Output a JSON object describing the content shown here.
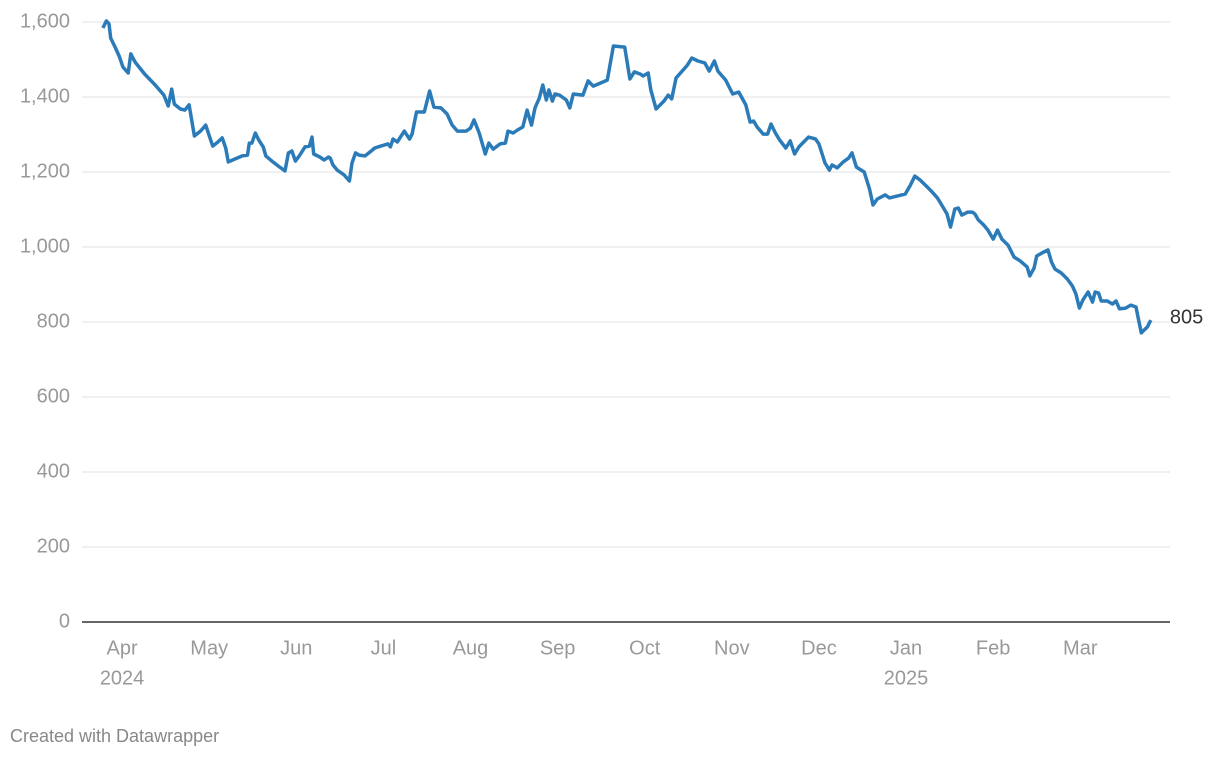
{
  "chart_data": {
    "type": "line",
    "color": "#2b7bb9",
    "grid": true,
    "xlim": [
      -0.46,
      12.03
    ],
    "ylim": [
      0,
      1600
    ],
    "yticks": [
      0,
      200,
      400,
      600,
      800,
      {
        "value": 1000,
        "label": "1,000"
      },
      {
        "value": 1200,
        "label": "1,200"
      },
      {
        "value": 1400,
        "label": "1,400"
      },
      {
        "value": 1600,
        "label": "1,600"
      }
    ],
    "xticks": [
      {
        "value": 0,
        "label": "Apr"
      },
      {
        "value": 1,
        "label": "May"
      },
      {
        "value": 2,
        "label": "Jun"
      },
      {
        "value": 3,
        "label": "Jul"
      },
      {
        "value": 4,
        "label": "Aug"
      },
      {
        "value": 5,
        "label": "Sep"
      },
      {
        "value": 6,
        "label": "Oct"
      },
      {
        "value": 7,
        "label": "Nov"
      },
      {
        "value": 8,
        "label": "Dec"
      },
      {
        "value": 9,
        "label": "Jan"
      },
      {
        "value": 10,
        "label": "Feb"
      },
      {
        "value": 11,
        "label": "Mar"
      }
    ],
    "year_labels": [
      {
        "value": 0,
        "label": "2024"
      },
      {
        "value": 9,
        "label": "2025"
      }
    ],
    "x": [
      -0.22,
      -0.18,
      -0.15,
      -0.13,
      -0.08,
      -0.03,
      0.01,
      0.07,
      0.1,
      0.15,
      0.26,
      0.38,
      0.48,
      0.53,
      0.57,
      0.6,
      0.67,
      0.72,
      0.77,
      0.83,
      0.9,
      0.96,
      1.04,
      1.1,
      1.15,
      1.19,
      1.22,
      1.3,
      1.38,
      1.44,
      1.46,
      1.49,
      1.53,
      1.57,
      1.62,
      1.65,
      1.72,
      1.81,
      1.87,
      1.91,
      1.95,
      1.99,
      2.04,
      2.1,
      2.15,
      2.18,
      2.2,
      2.27,
      2.32,
      2.37,
      2.39,
      2.42,
      2.47,
      2.55,
      2.61,
      2.64,
      2.68,
      2.72,
      2.79,
      2.86,
      2.9,
      2.97,
      3.05,
      3.08,
      3.11,
      3.16,
      3.24,
      3.3,
      3.33,
      3.38,
      3.47,
      3.53,
      3.58,
      3.66,
      3.73,
      3.79,
      3.85,
      3.95,
      4.0,
      4.04,
      4.1,
      4.17,
      4.21,
      4.26,
      4.34,
      4.4,
      4.43,
      4.49,
      4.54,
      4.6,
      4.65,
      4.7,
      4.74,
      4.79,
      4.83,
      4.87,
      4.9,
      4.94,
      4.97,
      5.02,
      5.1,
      5.14,
      5.18,
      5.29,
      5.35,
      5.41,
      5.49,
      5.57,
      5.64,
      5.77,
      5.83,
      5.88,
      5.95,
      5.98,
      6.04,
      6.07,
      6.13,
      6.22,
      6.27,
      6.31,
      6.36,
      6.43,
      6.49,
      6.54,
      6.61,
      6.69,
      6.74,
      6.8,
      6.84,
      6.93,
      7.01,
      7.08,
      7.16,
      7.21,
      7.25,
      7.29,
      7.36,
      7.41,
      7.45,
      7.5,
      7.55,
      7.62,
      7.67,
      7.72,
      7.77,
      7.88,
      7.96,
      8.0,
      8.07,
      8.12,
      8.15,
      8.21,
      8.28,
      8.34,
      8.38,
      8.43,
      8.52,
      8.58,
      8.62,
      8.67,
      8.76,
      8.81,
      8.99,
      9.05,
      9.1,
      9.16,
      9.23,
      9.29,
      9.36,
      9.43,
      9.47,
      9.51,
      9.56,
      9.6,
      9.64,
      9.71,
      9.76,
      9.79,
      9.83,
      9.89,
      9.94,
      10.0,
      10.05,
      10.1,
      10.17,
      10.24,
      10.31,
      10.39,
      10.42,
      10.47,
      10.5,
      10.56,
      10.63,
      10.67,
      10.71,
      10.78,
      10.85,
      10.91,
      10.95,
      10.99,
      11.03,
      11.09,
      11.14,
      11.17,
      11.21,
      11.24,
      11.31,
      11.37,
      11.41,
      11.45,
      11.52,
      11.58,
      11.64,
      11.66,
      11.7,
      11.77,
      11.81
    ],
    "values": [
      1584,
      1603,
      1595,
      1557,
      1533,
      1507,
      1480,
      1464,
      1515,
      1493,
      1461,
      1432,
      1405,
      1376,
      1421,
      1381,
      1368,
      1365,
      1379,
      1296,
      1309,
      1325,
      1269,
      1280,
      1291,
      1264,
      1227,
      1235,
      1243,
      1245,
      1277,
      1277,
      1304,
      1285,
      1267,
      1243,
      1229,
      1213,
      1203,
      1251,
      1256,
      1229,
      1245,
      1267,
      1269,
      1293,
      1248,
      1240,
      1232,
      1240,
      1237,
      1219,
      1205,
      1192,
      1176,
      1224,
      1251,
      1245,
      1243,
      1256,
      1264,
      1269,
      1275,
      1267,
      1288,
      1280,
      1309,
      1288,
      1301,
      1360,
      1360,
      1416,
      1373,
      1371,
      1355,
      1325,
      1309,
      1309,
      1317,
      1339,
      1304,
      1248,
      1277,
      1261,
      1275,
      1277,
      1309,
      1304,
      1312,
      1320,
      1365,
      1325,
      1371,
      1397,
      1432,
      1392,
      1419,
      1389,
      1408,
      1405,
      1392,
      1371,
      1408,
      1405,
      1443,
      1429,
      1437,
      1445,
      1536,
      1533,
      1448,
      1467,
      1461,
      1456,
      1464,
      1419,
      1368,
      1389,
      1405,
      1395,
      1451,
      1469,
      1485,
      1504,
      1496,
      1491,
      1469,
      1496,
      1469,
      1445,
      1408,
      1413,
      1379,
      1333,
      1336,
      1320,
      1301,
      1301,
      1328,
      1304,
      1285,
      1264,
      1283,
      1248,
      1267,
      1293,
      1288,
      1275,
      1224,
      1205,
      1219,
      1211,
      1227,
      1237,
      1251,
      1213,
      1200,
      1155,
      1112,
      1128,
      1139,
      1131,
      1141,
      1165,
      1189,
      1179,
      1163,
      1149,
      1131,
      1104,
      1088,
      1053,
      1101,
      1104,
      1085,
      1093,
      1093,
      1088,
      1072,
      1059,
      1045,
      1021,
      1045,
      1021,
      1005,
      973,
      963,
      947,
      923,
      944,
      976,
      984,
      992,
      960,
      941,
      931,
      915,
      896,
      875,
      837,
      859,
      880,
      853,
      880,
      877,
      856,
      856,
      848,
      856,
      835,
      837,
      845,
      840,
      816,
      771,
      787,
      805
    ]
  },
  "footer": "Created with Datawrapper"
}
